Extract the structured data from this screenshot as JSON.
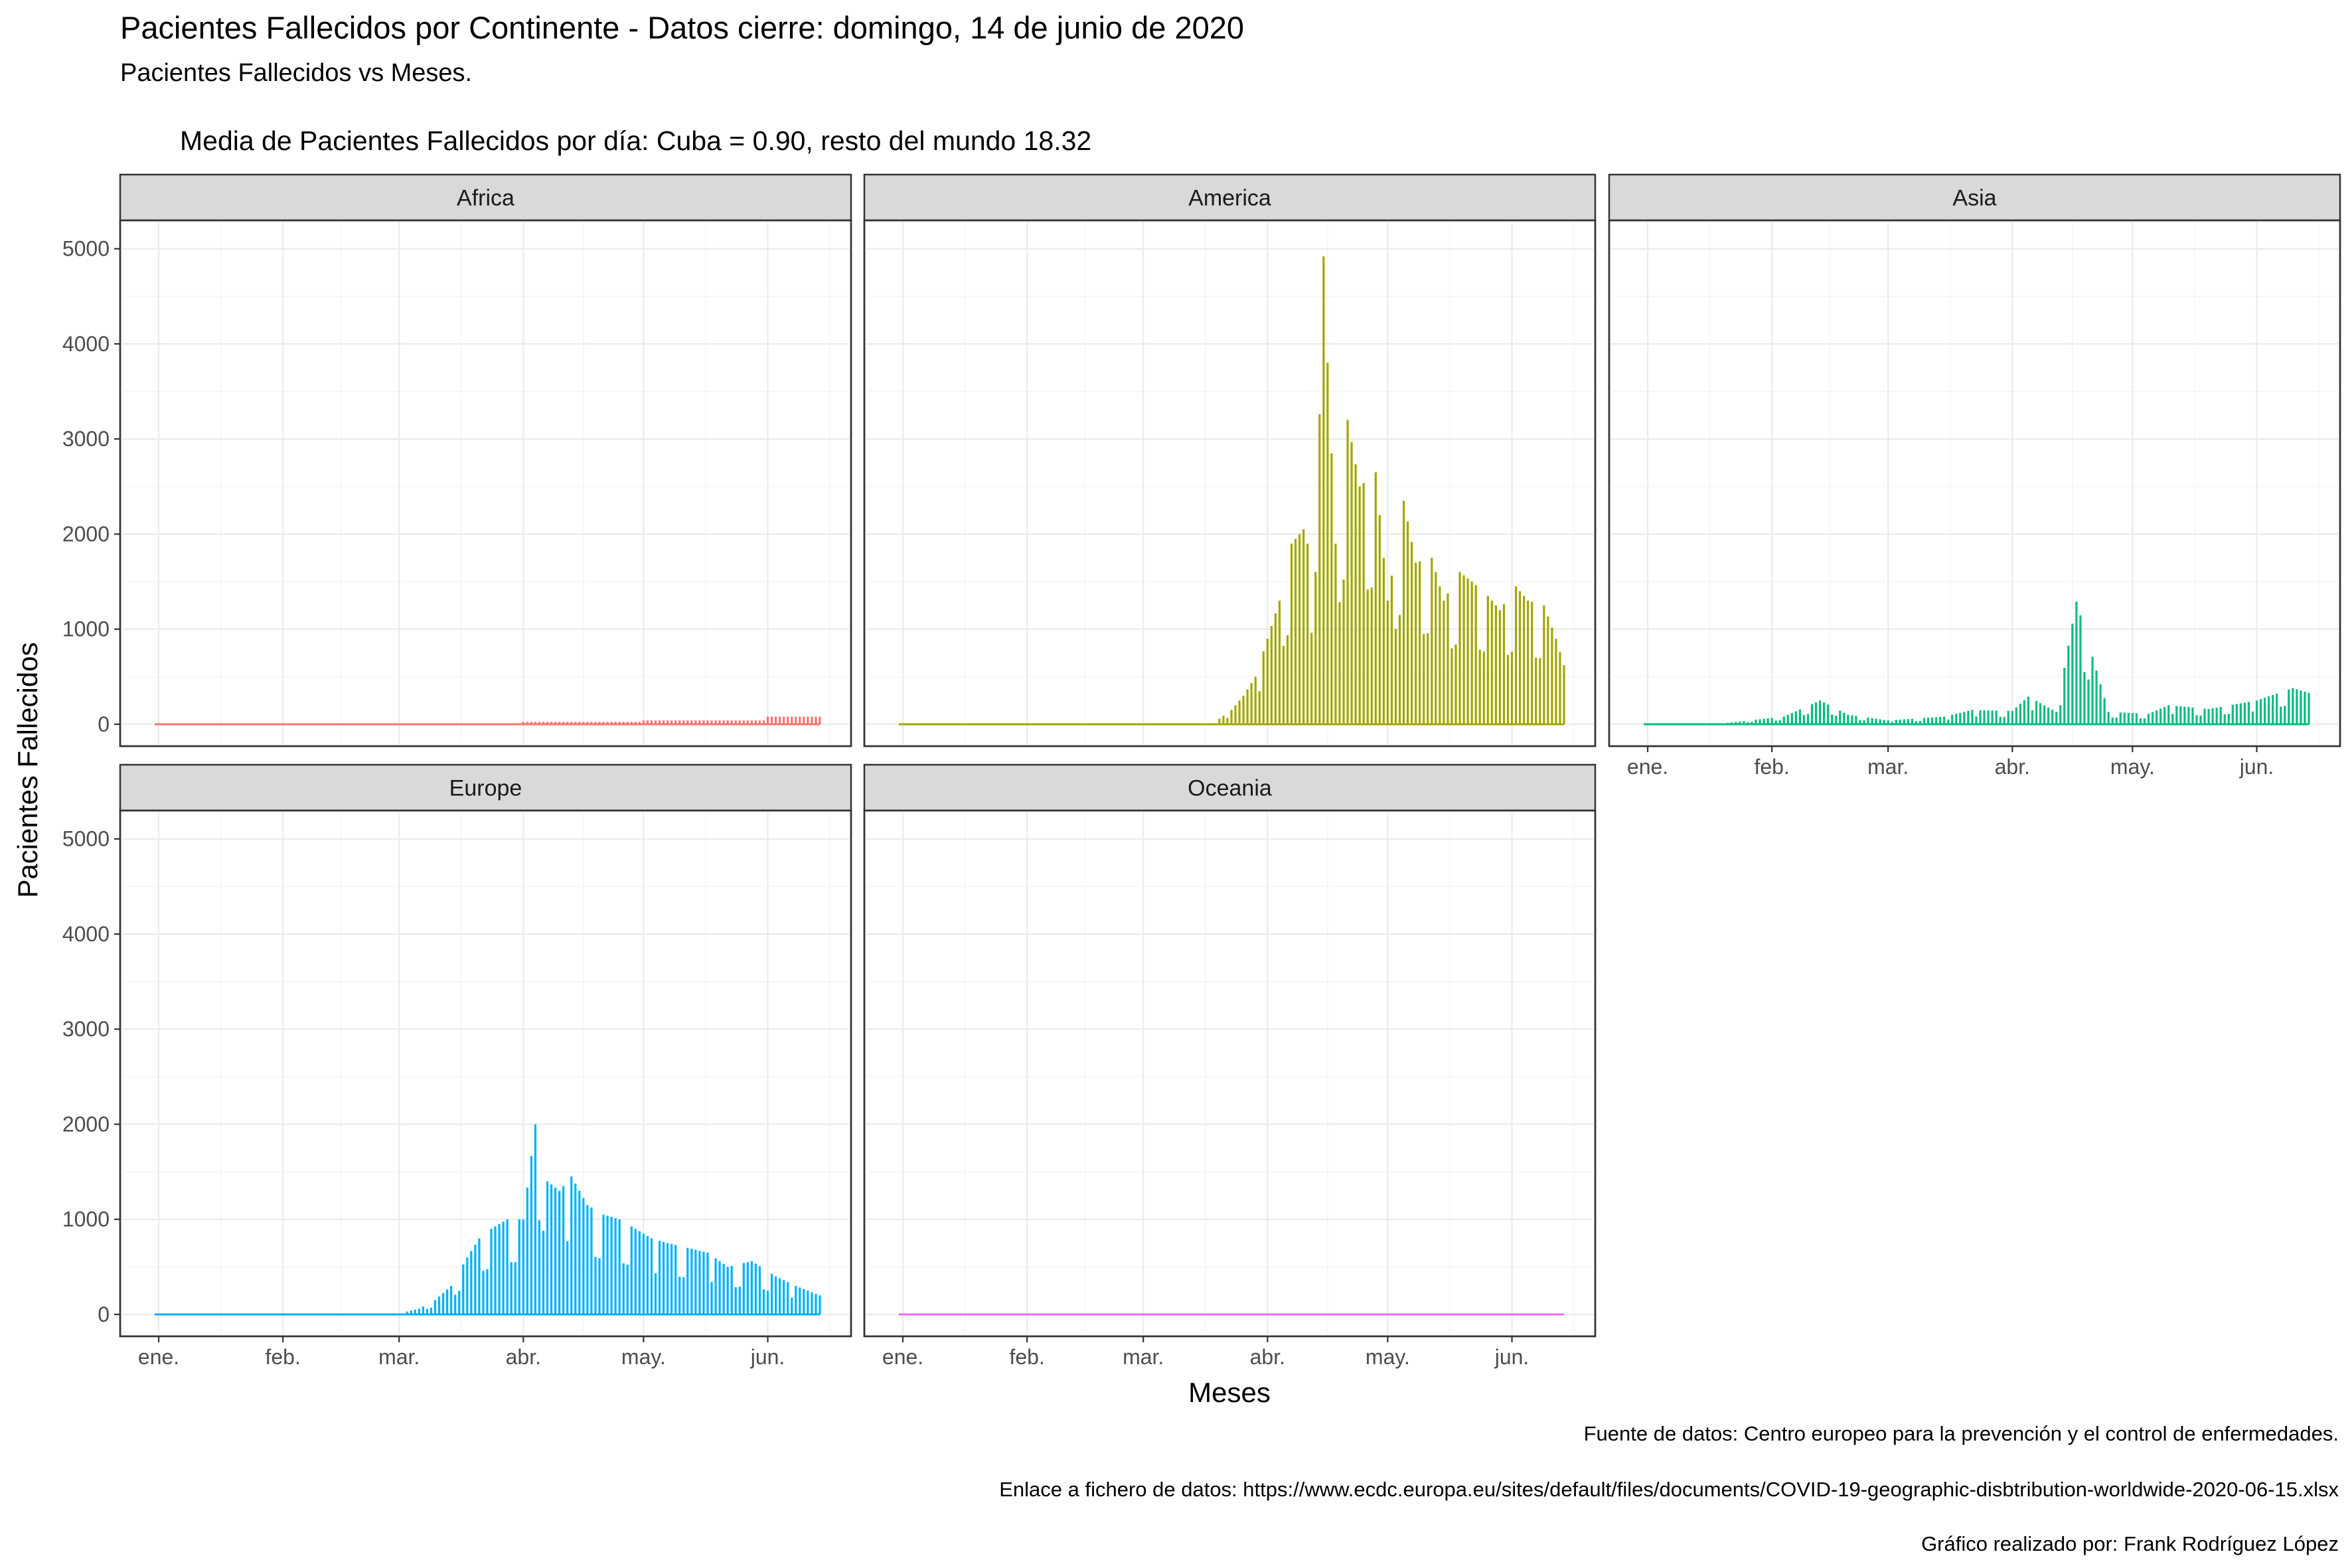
{
  "title": "Pacientes Fallecidos por Continente - Datos cierre: domingo, 14 de junio de 2020",
  "subtitle": "Pacientes Fallecidos vs Meses.",
  "annotation": "Media de Pacientes Fallecidos por día: Cuba = 0.90, resto del mundo 18.32",
  "captions": [
    "Fuente de datos: Centro europeo para la prevención y el control de enfermedades.",
    "Enlace a fichero de datos: https://www.ecdc.europa.eu/sites/default/files/documents/COVID-19-geographic-disbtribution-worldwide-2020-06-15.xlsx",
    "Gráfico realizado por: Frank Rodríguez López"
  ],
  "chart_data": {
    "type": "bar",
    "xlabel": "Meses",
    "ylabel": "Pacientes Fallecidos",
    "x_tick_labels": [
      "ene.",
      "feb.",
      "mar.",
      "abr.",
      "may.",
      "jun."
    ],
    "x_tick_dates": [
      "2020-01-01",
      "2020-02-01",
      "2020-03-01",
      "2020-04-01",
      "2020-05-01",
      "2020-06-01"
    ],
    "x_range": [
      "2019-12-31",
      "2020-06-14"
    ],
    "y_ticks": [
      0,
      1000,
      2000,
      3000,
      4000,
      5000
    ],
    "ylim": [
      0,
      5000
    ],
    "grid": true,
    "facets": [
      {
        "name": "Africa",
        "color": "#F8766D",
        "series": [
          {
            "from": "2019-12-31",
            "to": "2020-03-14",
            "value": 0
          },
          {
            "from": "2020-03-15",
            "to": "2020-03-31",
            "value": 5
          },
          {
            "from": "2020-04-01",
            "to": "2020-04-30",
            "value": 25
          },
          {
            "from": "2020-05-01",
            "to": "2020-05-31",
            "value": 40
          },
          {
            "from": "2020-06-01",
            "to": "2020-06-14",
            "value": 80
          }
        ]
      },
      {
        "name": "America",
        "color": "#A3A500",
        "points": [
          {
            "date": "2020-03-20",
            "value": 60
          },
          {
            "date": "2020-03-23",
            "value": 150
          },
          {
            "date": "2020-03-26",
            "value": 300
          },
          {
            "date": "2020-03-29",
            "value": 500
          },
          {
            "date": "2020-04-01",
            "value": 900
          },
          {
            "date": "2020-04-04",
            "value": 1300
          },
          {
            "date": "2020-04-07",
            "value": 1900
          },
          {
            "date": "2020-04-10",
            "value": 2050
          },
          {
            "date": "2020-04-13",
            "value": 1600
          },
          {
            "date": "2020-04-15",
            "value": 4920
          },
          {
            "date": "2020-04-16",
            "value": 3800
          },
          {
            "date": "2020-04-18",
            "value": 1900
          },
          {
            "date": "2020-04-21",
            "value": 3200
          },
          {
            "date": "2020-04-24",
            "value": 2500
          },
          {
            "date": "2020-04-28",
            "value": 2650
          },
          {
            "date": "2020-05-01",
            "value": 1300
          },
          {
            "date": "2020-05-05",
            "value": 2350
          },
          {
            "date": "2020-05-08",
            "value": 1700
          },
          {
            "date": "2020-05-12",
            "value": 1750
          },
          {
            "date": "2020-05-15",
            "value": 1300
          },
          {
            "date": "2020-05-19",
            "value": 1600
          },
          {
            "date": "2020-05-22",
            "value": 1500
          },
          {
            "date": "2020-05-26",
            "value": 1350
          },
          {
            "date": "2020-05-29",
            "value": 1200
          },
          {
            "date": "2020-06-02",
            "value": 1450
          },
          {
            "date": "2020-06-05",
            "value": 1300
          },
          {
            "date": "2020-06-09",
            "value": 1250
          },
          {
            "date": "2020-06-12",
            "value": 900
          },
          {
            "date": "2020-06-14",
            "value": 620
          }
        ]
      },
      {
        "name": "Asia",
        "color": "#00BF7D",
        "points": [
          {
            "date": "2020-01-20",
            "value": 10
          },
          {
            "date": "2020-02-04",
            "value": 80
          },
          {
            "date": "2020-02-13",
            "value": 250
          },
          {
            "date": "2020-02-20",
            "value": 100
          },
          {
            "date": "2020-03-01",
            "value": 40
          },
          {
            "date": "2020-03-15",
            "value": 80
          },
          {
            "date": "2020-03-22",
            "value": 150
          },
          {
            "date": "2020-04-01",
            "value": 140
          },
          {
            "date": "2020-04-05",
            "value": 290
          },
          {
            "date": "2020-04-12",
            "value": 130
          },
          {
            "date": "2020-04-17",
            "value": 1290
          },
          {
            "date": "2020-04-25",
            "value": 130
          },
          {
            "date": "2020-05-05",
            "value": 110
          },
          {
            "date": "2020-05-10",
            "value": 200
          },
          {
            "date": "2020-05-20",
            "value": 160
          },
          {
            "date": "2020-06-01",
            "value": 250
          },
          {
            "date": "2020-06-10",
            "value": 380
          },
          {
            "date": "2020-06-14",
            "value": 330
          }
        ]
      },
      {
        "name": "Europe",
        "color": "#00B0F6",
        "points": [
          {
            "date": "2020-03-01",
            "value": 10
          },
          {
            "date": "2020-03-06",
            "value": 60
          },
          {
            "date": "2020-03-10",
            "value": 150
          },
          {
            "date": "2020-03-14",
            "value": 300
          },
          {
            "date": "2020-03-18",
            "value": 600
          },
          {
            "date": "2020-03-21",
            "value": 800
          },
          {
            "date": "2020-03-24",
            "value": 900
          },
          {
            "date": "2020-03-28",
            "value": 1000
          },
          {
            "date": "2020-04-01",
            "value": 1000
          },
          {
            "date": "2020-04-04",
            "value": 2000
          },
          {
            "date": "2020-04-07",
            "value": 1400
          },
          {
            "date": "2020-04-10",
            "value": 1300
          },
          {
            "date": "2020-04-13",
            "value": 1450
          },
          {
            "date": "2020-04-17",
            "value": 1150
          },
          {
            "date": "2020-04-21",
            "value": 1050
          },
          {
            "date": "2020-04-25",
            "value": 1000
          },
          {
            "date": "2020-04-29",
            "value": 900
          },
          {
            "date": "2020-05-03",
            "value": 800
          },
          {
            "date": "2020-05-07",
            "value": 750
          },
          {
            "date": "2020-05-12",
            "value": 700
          },
          {
            "date": "2020-05-17",
            "value": 650
          },
          {
            "date": "2020-05-22",
            "value": 500
          },
          {
            "date": "2020-05-28",
            "value": 560
          },
          {
            "date": "2020-06-03",
            "value": 400
          },
          {
            "date": "2020-06-08",
            "value": 300
          },
          {
            "date": "2020-06-14",
            "value": 200
          }
        ]
      },
      {
        "name": "Oceania",
        "color": "#E76BF3",
        "series": [
          {
            "from": "2019-12-31",
            "to": "2020-06-14",
            "value": 0
          }
        ]
      }
    ]
  }
}
